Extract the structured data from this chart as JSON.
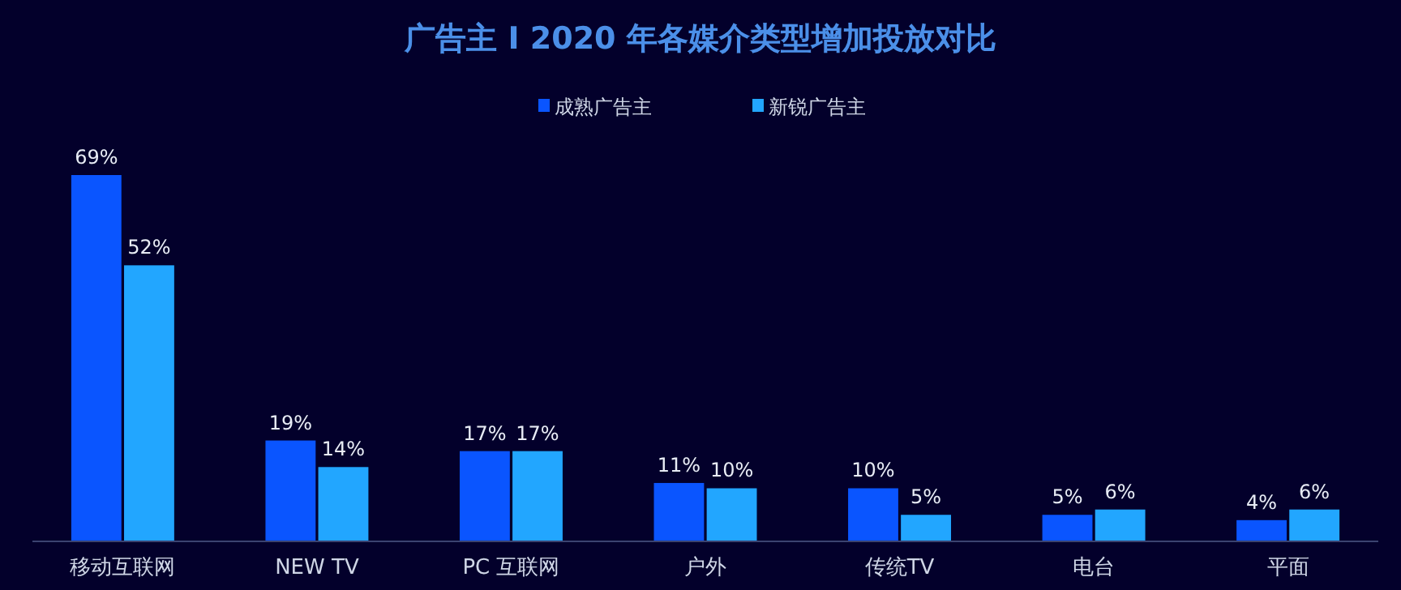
{
  "chart_data": {
    "type": "bar",
    "title": "广告主 I 2020 年各媒介类型增加投放对比",
    "categories": [
      "移动互联网",
      "NEW TV",
      "PC 互联网",
      "户外",
      "传统TV",
      "电台",
      "平面"
    ],
    "series": [
      {
        "name": "成熟广告主",
        "color": "#0a55ff",
        "values": [
          69,
          19,
          17,
          11,
          10,
          5,
          4
        ],
        "value_labels": [
          "69%",
          "19%",
          "17%",
          "11%",
          "10%",
          "5%",
          "4%"
        ]
      },
      {
        "name": "新锐广告主",
        "color": "#22a6ff",
        "values": [
          52,
          14,
          17,
          10,
          5,
          6,
          6
        ],
        "value_labels": [
          "52%",
          "14%",
          "17%",
          "10%",
          "5%",
          "6%",
          "6%"
        ]
      }
    ],
    "legend": "top",
    "grid": false
  }
}
